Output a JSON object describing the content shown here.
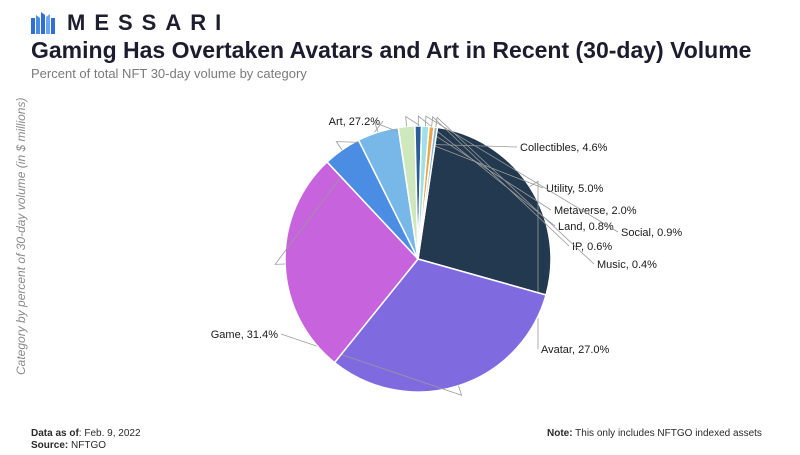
{
  "brand": {
    "name": "MESSARI",
    "logo_icon": "messari-logo-icon"
  },
  "chart_data": {
    "type": "pie",
    "title": "Gaming Has Overtaken Avatars and Art in Recent (30-day) Volume",
    "subtitle": "Percent of total NFT 30-day volume by category",
    "ylabel": "Category by percent of 30-day volume (in $ millions)",
    "slices": [
      {
        "label": "Avatar",
        "value": 27.0,
        "text": "Avatar, 27.0%",
        "color": "#22394f"
      },
      {
        "label": "Game",
        "value": 31.4,
        "text": "Game, 31.4%",
        "color": "#7f6bdf"
      },
      {
        "label": "Art",
        "value": 27.2,
        "text": "Art, 27.2%",
        "color": "#c763dc"
      },
      {
        "label": "Collectibles",
        "value": 4.6,
        "text": "Collectibles, 4.6%",
        "color": "#4a8de3"
      },
      {
        "label": "Utility",
        "value": 5.0,
        "text": "Utility, 5.0%",
        "color": "#78b8e8"
      },
      {
        "label": "Metaverse",
        "value": 2.0,
        "text": "Metaverse, 2.0%",
        "color": "#cfe7bd"
      },
      {
        "label": "Land",
        "value": 0.8,
        "text": "Land, 0.8%",
        "color": "#2b5e99"
      },
      {
        "label": "Social",
        "value": 0.9,
        "text": "Social, 0.9%",
        "color": "#9fe0e8"
      },
      {
        "label": "IP",
        "value": 0.6,
        "text": "IP, 0.6%",
        "color": "#f0a545"
      },
      {
        "label": "Music",
        "value": 0.4,
        "text": "Music, 0.4%",
        "color": "#7fb2dd"
      }
    ]
  },
  "footer": {
    "as_of_label": "Data as of",
    "as_of_value": ": Feb. 9, 2022",
    "source_label": "Source:",
    "source_value": " NFTGO",
    "note_label": "Note:",
    "note_value": " This only includes NFTGO indexed assets"
  }
}
